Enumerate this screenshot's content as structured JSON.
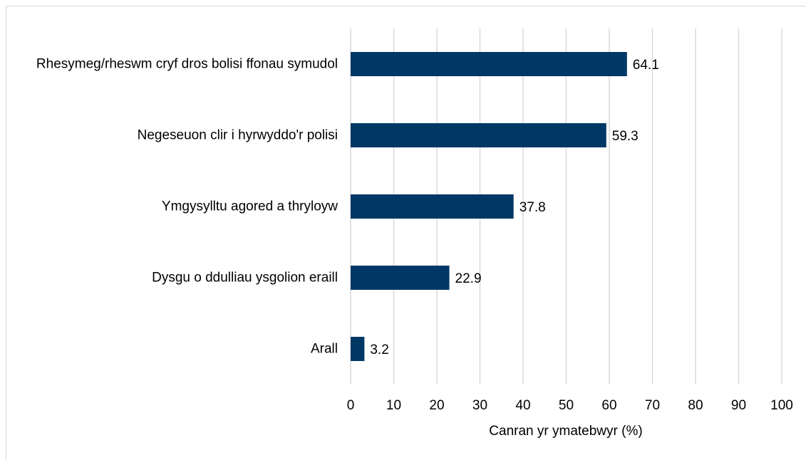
{
  "chart_data": {
    "type": "barh",
    "categories": [
      "Rhesymeg/rheswm cryf dros bolisi ffonau symudol",
      "Negeseuon clir i hyrwyddo'r polisi",
      "Ymgysylltu agored a thryloyw",
      "Dysgu o ddulliau ysgolion eraill",
      "Arall"
    ],
    "values": [
      64.1,
      59.3,
      37.8,
      22.9,
      3.2
    ],
    "color": "#003865",
    "xlabel": "Canran yr ymatebwyr (%)",
    "xlim": [
      0,
      100
    ],
    "xticks": [
      0,
      10,
      20,
      30,
      40,
      50,
      60,
      70,
      80,
      90,
      100
    ],
    "grid": true
  }
}
